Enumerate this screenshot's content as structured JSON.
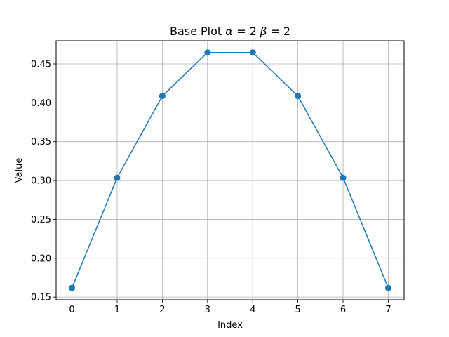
{
  "chart_data": {
    "type": "line",
    "title": "Base Plot",
    "title_params": [
      {
        "symbol": "α",
        "equals": "=",
        "value": "2"
      },
      {
        "symbol": "β",
        "equals": "=",
        "value": "2"
      }
    ],
    "xlabel": "Index",
    "ylabel": "Value",
    "x": [
      0,
      1,
      2,
      3,
      4,
      5,
      6,
      7
    ],
    "series": [
      {
        "values": [
          0.1617,
          0.3035,
          0.4087,
          0.4647,
          0.4647,
          0.4087,
          0.3035,
          0.1617
        ],
        "marker": "circle"
      }
    ],
    "xlim": [
      -0.35,
      7.35
    ],
    "ylim": [
      0.1465,
      0.4798
    ],
    "xticks": [
      0,
      1,
      2,
      3,
      4,
      5,
      6,
      7
    ],
    "xtick_labels": [
      "0",
      "1",
      "2",
      "3",
      "4",
      "5",
      "6",
      "7"
    ],
    "yticks": [
      0.15,
      0.2,
      0.25,
      0.3,
      0.35,
      0.4,
      0.45
    ],
    "ytick_labels": [
      "0.15",
      "0.20",
      "0.25",
      "0.30",
      "0.35",
      "0.40",
      "0.45"
    ],
    "grid": true,
    "colors": {
      "line": "#1f77b4",
      "grid": "#b0b0b0",
      "axes": "#000000"
    }
  }
}
